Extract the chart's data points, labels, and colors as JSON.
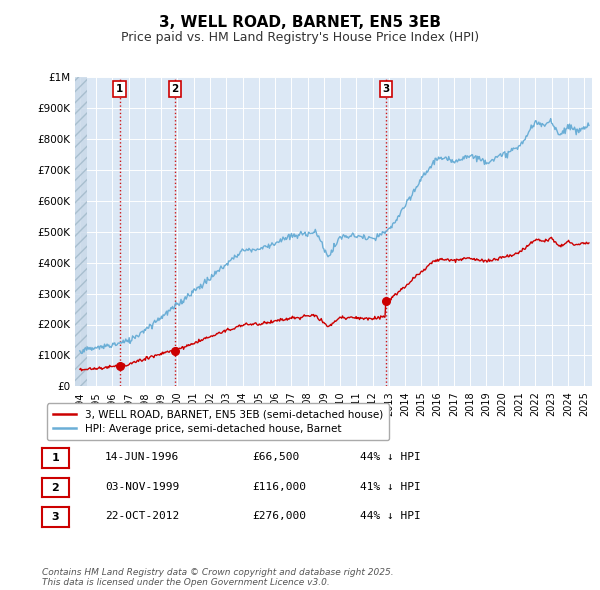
{
  "title": "3, WELL ROAD, BARNET, EN5 3EB",
  "subtitle": "Price paid vs. HM Land Registry's House Price Index (HPI)",
  "title_fontsize": 11,
  "subtitle_fontsize": 9,
  "background_color": "#ffffff",
  "plot_bg_color": "#dce8f5",
  "grid_color": "#ffffff",
  "ylim": [
    0,
    1000000
  ],
  "yticks": [
    0,
    100000,
    200000,
    300000,
    400000,
    500000,
    600000,
    700000,
    800000,
    900000,
    1000000
  ],
  "ytick_labels": [
    "£0",
    "£100K",
    "£200K",
    "£300K",
    "£400K",
    "£500K",
    "£600K",
    "£700K",
    "£800K",
    "£900K",
    "£1M"
  ],
  "sale_dates_num": [
    1996.45,
    1999.84,
    2012.81
  ],
  "sale_prices": [
    66500,
    116000,
    276000
  ],
  "sale_labels": [
    "1",
    "2",
    "3"
  ],
  "vline_color": "#cc0000",
  "vline_style": ":",
  "marker_color": "#cc0000",
  "hpi_color": "#6baed6",
  "price_color": "#cc0000",
  "legend_label_price": "3, WELL ROAD, BARNET, EN5 3EB (semi-detached house)",
  "legend_label_hpi": "HPI: Average price, semi-detached house, Barnet",
  "table_rows": [
    [
      "1",
      "14-JUN-1996",
      "£66,500",
      "44% ↓ HPI"
    ],
    [
      "2",
      "03-NOV-1999",
      "£116,000",
      "41% ↓ HPI"
    ],
    [
      "3",
      "22-OCT-2012",
      "£276,000",
      "44% ↓ HPI"
    ]
  ],
  "footer_text": "Contains HM Land Registry data © Crown copyright and database right 2025.\nThis data is licensed under the Open Government Licence v3.0.",
  "xlim_start": 1993.7,
  "xlim_end": 2025.5,
  "xtick_years": [
    1994,
    1995,
    1996,
    1997,
    1998,
    1999,
    2000,
    2001,
    2002,
    2003,
    2004,
    2005,
    2006,
    2007,
    2008,
    2009,
    2010,
    2011,
    2012,
    2013,
    2014,
    2015,
    2016,
    2017,
    2018,
    2019,
    2020,
    2021,
    2022,
    2023,
    2024,
    2025
  ]
}
